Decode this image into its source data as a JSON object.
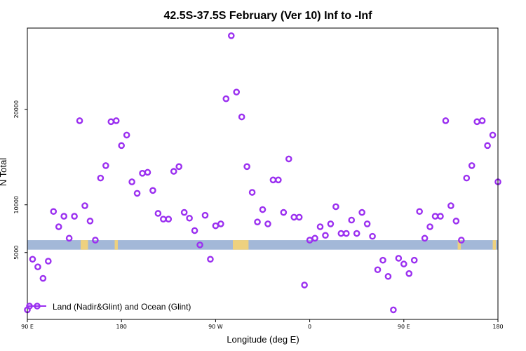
{
  "chart_data": {
    "type": "scatter",
    "title": "42.5S-37.5S February (Ver 10)   Inf to -Inf",
    "xlabel": "Longitude (deg E)",
    "ylabel": "N Total",
    "xlim": [
      0,
      90
    ],
    "ylim": [
      -2000,
      28500
    ],
    "x_ticks": [
      {
        "value": 0,
        "label": "90 E"
      },
      {
        "value": 18,
        "label": "180"
      },
      {
        "value": 36,
        "label": "90 W"
      },
      {
        "value": 54,
        "label": "0"
      },
      {
        "value": 72,
        "label": "90 E"
      },
      {
        "value": 90,
        "label": "180"
      }
    ],
    "y_ticks": [
      {
        "value": 5000,
        "label": "5000"
      },
      {
        "value": 10000,
        "label": "10000"
      },
      {
        "value": 20000,
        "label": "20000"
      }
    ],
    "band": {
      "y_min": 5300,
      "y_max": 6300,
      "color": "#a3b8d8",
      "highlight_color": "#f2d27a"
    },
    "band_highlights": [
      {
        "x_start": 10.2,
        "x_end": 11.6
      },
      {
        "x_start": 16.7,
        "x_end": 17.3
      },
      {
        "x_start": 39.3,
        "x_end": 42.3
      },
      {
        "x_start": 82.3,
        "x_end": 82.9
      },
      {
        "x_start": 89.0,
        "x_end": 89.6
      }
    ],
    "series": [
      {
        "name": "Land (Nadir&Glint) and Ocean (Glint)",
        "color": "#9b30f0",
        "marker": "open-circle",
        "x": [
          0,
          1,
          2,
          3,
          4,
          5,
          6,
          7,
          8,
          9,
          10,
          11,
          12,
          13,
          14,
          15,
          16,
          17,
          18,
          19,
          20,
          21,
          22,
          23,
          24,
          25,
          26,
          27,
          28,
          29,
          30,
          31,
          32,
          33,
          34,
          35,
          36,
          37,
          38,
          39,
          40,
          41,
          42,
          43,
          44,
          45,
          46,
          47,
          48,
          49,
          50,
          51,
          52,
          53,
          54,
          55,
          56,
          57,
          58,
          59,
          60,
          61,
          62,
          63,
          64,
          65,
          66,
          67,
          68,
          69,
          70,
          71,
          72,
          73,
          74,
          75,
          76,
          77,
          78,
          79,
          80,
          81,
          82,
          83,
          84,
          85,
          86,
          87,
          88,
          89,
          90
        ],
        "values": [
          -1000,
          4300,
          3500,
          2300,
          4100,
          9300,
          7700,
          8800,
          6500,
          8800,
          18800,
          9900,
          8300,
          6300,
          12800,
          14100,
          18700,
          18800,
          16200,
          17300,
          12400,
          11200,
          13300,
          13400,
          11500,
          9100,
          8500,
          8500,
          13500,
          14000,
          9200,
          8600,
          7300,
          5800,
          8900,
          4300,
          7800,
          8000,
          21100,
          27700,
          21800,
          19200,
          14000,
          11300,
          8200,
          9500,
          8000,
          12600,
          12600,
          9200,
          14800,
          8700,
          8700,
          1600,
          6300,
          6500,
          7700,
          6800,
          8000,
          9800,
          7000,
          7000,
          8400,
          7000,
          9200,
          8000,
          6700,
          3200,
          4200,
          2500,
          -1000,
          4400,
          3800,
          2800,
          4200,
          9300,
          6500,
          7700,
          8800,
          8800,
          18800,
          9900,
          8300,
          6300,
          12800,
          14100,
          18700,
          18800,
          16200,
          17300,
          12400
        ]
      }
    ],
    "legend": {
      "label": "Land (Nadir&Glint) and Ocean (Glint)",
      "placement": "bottom-left"
    }
  }
}
